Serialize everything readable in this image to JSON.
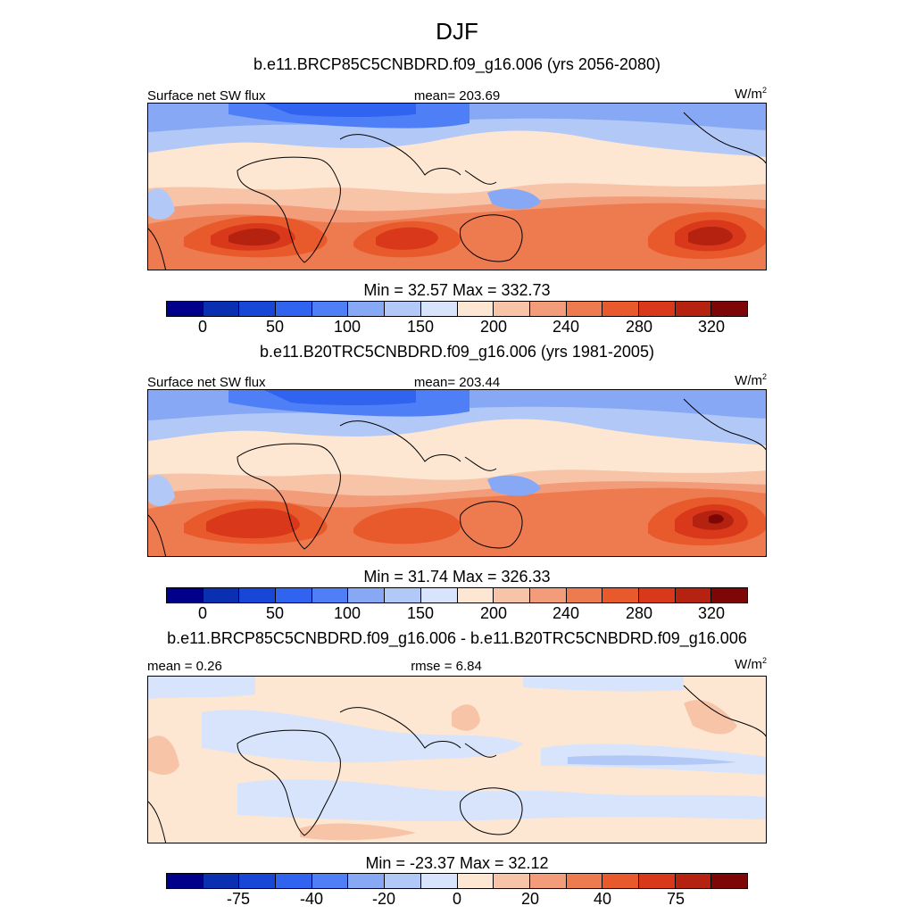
{
  "title": "DJF",
  "panels": [
    {
      "case_title": "b.e11.BRCP85C5CNBDRD.f09_g16.006 (yrs 2056-2080)",
      "left_label": "Surface net SW flux",
      "center_label": "mean= 203.69",
      "units": "W/m",
      "units_sup": "2",
      "minmax": "Min =  32.57 Max = 332.73",
      "colorbar_ticks": [
        "0",
        "50",
        "100",
        "150",
        "200",
        "240",
        "280",
        "320"
      ],
      "colors": [
        "#00008b",
        "#0a2fb0",
        "#1846d6",
        "#2f63f0",
        "#4f7ff7",
        "#86a8f5",
        "#b2c8f7",
        "#d7e4fb",
        "#fde7d2",
        "#f8c4a8",
        "#f39c7a",
        "#ee7a50",
        "#e85a2c",
        "#d9391a",
        "#b52310",
        "#7d0606"
      ]
    },
    {
      "case_title": "b.e11.B20TRC5CNBDRD.f09_g16.006 (yrs 1981-2005)",
      "left_label": "Surface net SW flux",
      "center_label": "mean= 203.44",
      "units": "W/m",
      "units_sup": "2",
      "minmax": "Min =  31.74 Max = 326.33",
      "colorbar_ticks": [
        "0",
        "50",
        "100",
        "150",
        "200",
        "240",
        "280",
        "320"
      ],
      "colors": [
        "#00008b",
        "#0a2fb0",
        "#1846d6",
        "#2f63f0",
        "#4f7ff7",
        "#86a8f5",
        "#b2c8f7",
        "#d7e4fb",
        "#fde7d2",
        "#f8c4a8",
        "#f39c7a",
        "#ee7a50",
        "#e85a2c",
        "#d9391a",
        "#b52310",
        "#7d0606"
      ]
    },
    {
      "case_title": "b.e11.BRCP85C5CNBDRD.f09_g16.006 - b.e11.B20TRC5CNBDRD.f09_g16.006",
      "left_label": "mean =   0.26",
      "center_label": "rmse =   6.84",
      "units": "W/m",
      "units_sup": "2",
      "minmax": "Min = -23.37 Max =  32.12",
      "colorbar_ticks": [
        "-75",
        "-40",
        "-20",
        "0",
        "20",
        "40",
        "75"
      ],
      "colors": [
        "#00008b",
        "#0a2fb0",
        "#1846d6",
        "#2f63f0",
        "#4f7ff7",
        "#86a8f5",
        "#b2c8f7",
        "#d7e4fb",
        "#fde7d2",
        "#f8c4a8",
        "#f39c7a",
        "#ee7a50",
        "#e85a2c",
        "#d9391a",
        "#b52310",
        "#7d0606"
      ]
    }
  ]
}
